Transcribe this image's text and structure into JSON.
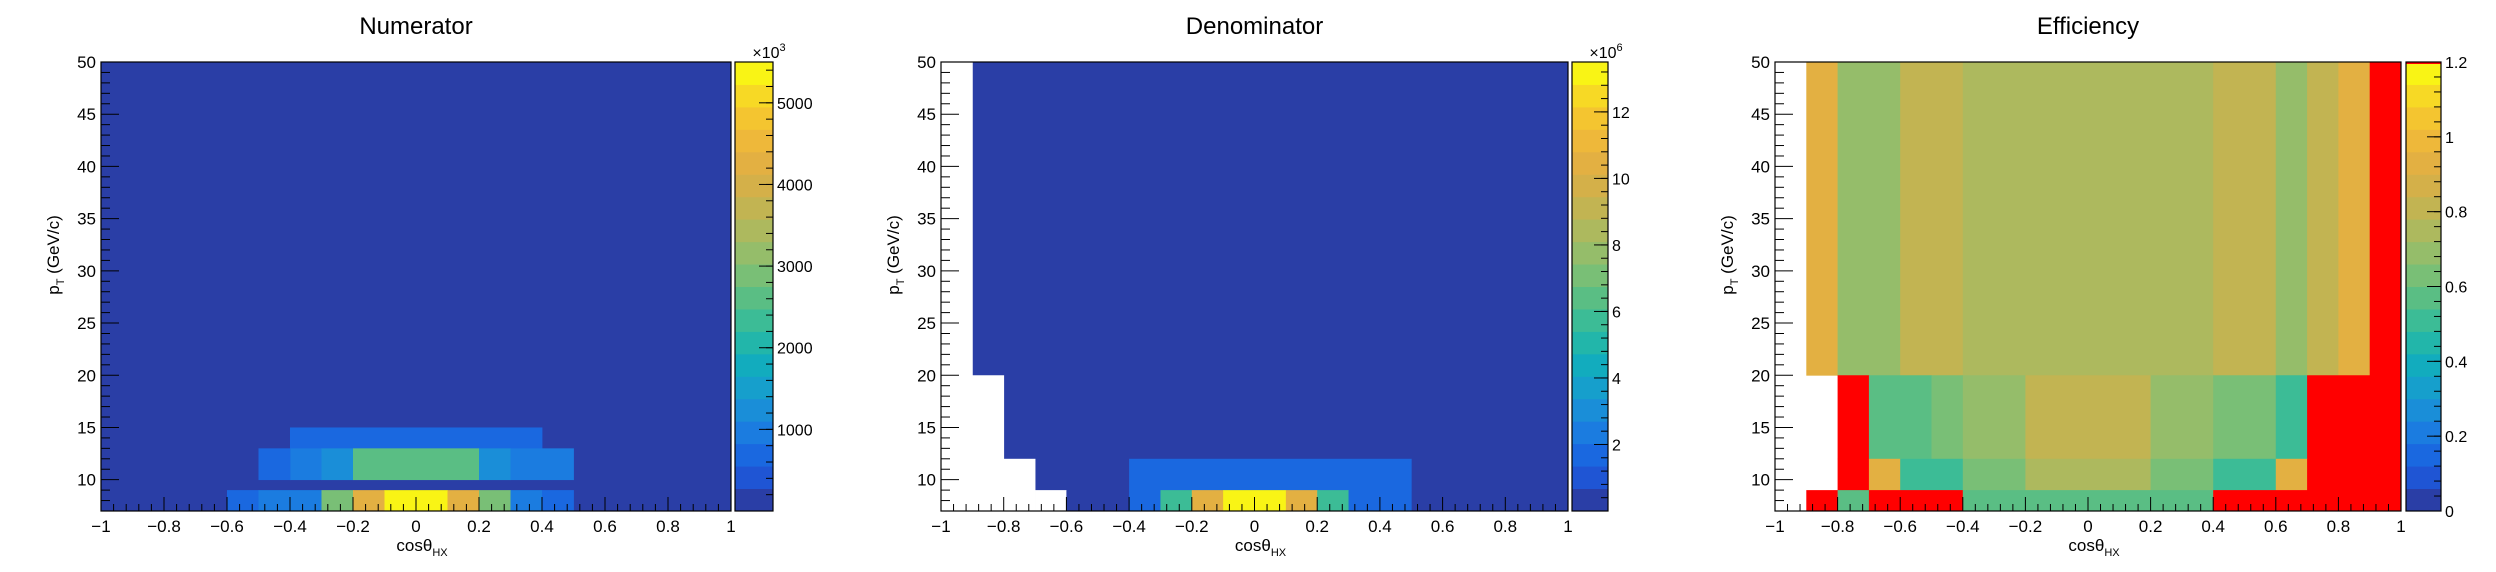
{
  "chart_data": [
    {
      "type": "heatmap",
      "title": "Numerator",
      "xlabel_main": "cosθ",
      "xlabel_sub": "HX",
      "ylabel_main": "p",
      "ylabel_sub": "T",
      "ylabel_rest": " (GeV/c)",
      "xlim": [
        -1,
        1
      ],
      "ylim": [
        7,
        50
      ],
      "x_ticks": [
        -1,
        -0.8,
        -0.6,
        -0.4,
        -0.2,
        0,
        0.2,
        0.4,
        0.6,
        0.8,
        1
      ],
      "x_tick_labels": [
        "−1",
        "−0.8",
        "−0.6",
        "−0.4",
        "−0.2",
        "0",
        "0.2",
        "0.4",
        "0.6",
        "0.8",
        "1"
      ],
      "y_ticks": [
        10,
        15,
        20,
        25,
        30,
        35,
        40,
        45,
        50
      ],
      "y_tick_labels": [
        "10",
        "15",
        "20",
        "25",
        "30",
        "35",
        "40",
        "45",
        "50"
      ],
      "colorbar": {
        "range": [
          0,
          5500
        ],
        "ticks": [
          1000,
          2000,
          3000,
          4000,
          5000
        ],
        "tick_labels": [
          "1000",
          "2000",
          "3000",
          "4000",
          "5000"
        ],
        "multiplier": "×10",
        "multiplier_exp": "3"
      },
      "cells": [
        {
          "x0": -1,
          "x1": 1,
          "y0": 7,
          "y1": 50,
          "v": 150
        },
        {
          "x0": -0.4,
          "x1": 0.4,
          "y0": 13,
          "y1": 15,
          "v": 700
        },
        {
          "x0": -0.4,
          "x1": -0.3,
          "y0": 10,
          "y1": 13,
          "v": 900
        },
        {
          "x0": -0.3,
          "x1": -0.2,
          "y0": 10,
          "y1": 13,
          "v": 1300
        },
        {
          "x0": -0.2,
          "x1": 0.2,
          "y0": 10,
          "y1": 13,
          "v": 2500
        },
        {
          "x0": 0.2,
          "x1": 0.3,
          "y0": 10,
          "y1": 13,
          "v": 1300
        },
        {
          "x0": 0.3,
          "x1": 0.5,
          "y0": 10,
          "y1": 13,
          "v": 900
        },
        {
          "x0": -0.5,
          "x1": -0.4,
          "y0": 10,
          "y1": 13,
          "v": 700
        },
        {
          "x0": -0.6,
          "x1": -0.5,
          "y0": 7,
          "y1": 9,
          "v": 700
        },
        {
          "x0": -0.5,
          "x1": -0.3,
          "y0": 7,
          "y1": 9,
          "v": 900
        },
        {
          "x0": -0.3,
          "x1": -0.2,
          "y0": 7,
          "y1": 9,
          "v": 2800
        },
        {
          "x0": -0.2,
          "x1": -0.1,
          "y0": 7,
          "y1": 9,
          "v": 4200
        },
        {
          "x0": -0.1,
          "x1": 0.1,
          "y0": 7,
          "y1": 9,
          "v": 5400
        },
        {
          "x0": 0.1,
          "x1": 0.2,
          "y0": 7,
          "y1": 9,
          "v": 4200
        },
        {
          "x0": 0.2,
          "x1": 0.3,
          "y0": 7,
          "y1": 9,
          "v": 2800
        },
        {
          "x0": 0.3,
          "x1": 0.4,
          "y0": 7,
          "y1": 9,
          "v": 1000
        },
        {
          "x0": 0.4,
          "x1": 0.5,
          "y0": 7,
          "y1": 9,
          "v": 800
        }
      ]
    },
    {
      "type": "heatmap",
      "title": "Denominator",
      "xlabel_main": "cosθ",
      "xlabel_sub": "HX",
      "ylabel_main": "p",
      "ylabel_sub": "T",
      "ylabel_rest": " (GeV/c)",
      "xlim": [
        -1,
        1
      ],
      "ylim": [
        7,
        50
      ],
      "x_ticks": [
        -1,
        -0.8,
        -0.6,
        -0.4,
        -0.2,
        0,
        0.2,
        0.4,
        0.6,
        0.8,
        1
      ],
      "x_tick_labels": [
        "−1",
        "−0.8",
        "−0.6",
        "−0.4",
        "−0.2",
        "0",
        "0.2",
        "0.4",
        "0.6",
        "0.8",
        "1"
      ],
      "y_ticks": [
        10,
        15,
        20,
        25,
        30,
        35,
        40,
        45,
        50
      ],
      "y_tick_labels": [
        "10",
        "15",
        "20",
        "25",
        "30",
        "35",
        "40",
        "45",
        "50"
      ],
      "colorbar": {
        "range": [
          0,
          13.5
        ],
        "ticks": [
          2,
          4,
          6,
          8,
          10,
          12
        ],
        "tick_labels": [
          "2",
          "4",
          "6",
          "8",
          "10",
          "12"
        ],
        "multiplier": "×10",
        "multiplier_exp": "6"
      },
      "cells": [
        {
          "x0": -1,
          "x1": 1,
          "y0": 7,
          "y1": 50,
          "v": 0.3
        },
        {
          "x0": -1,
          "x1": -0.9,
          "y0": 7,
          "y1": 50,
          "v": null
        },
        {
          "x0": -0.9,
          "x1": -0.8,
          "y0": 7,
          "y1": 20,
          "v": null
        },
        {
          "x0": -0.8,
          "x1": -0.7,
          "y0": 7,
          "y1": 12,
          "v": null
        },
        {
          "x0": -0.7,
          "x1": -0.6,
          "y0": 7,
          "y1": 9,
          "v": null
        },
        {
          "x0": -0.6,
          "x1": -0.4,
          "y0": 7,
          "y1": 9,
          "v": 0.6
        },
        {
          "x0": -0.4,
          "x1": 0.5,
          "y0": 9,
          "y1": 12,
          "v": 1.5
        },
        {
          "x0": -0.4,
          "x1": -0.3,
          "y0": 7,
          "y1": 9,
          "v": 1.8
        },
        {
          "x0": -0.3,
          "x1": -0.2,
          "y0": 7,
          "y1": 9,
          "v": 5.5
        },
        {
          "x0": -0.2,
          "x1": -0.1,
          "y0": 7,
          "y1": 9,
          "v": 10.5
        },
        {
          "x0": -0.1,
          "x1": 0.1,
          "y0": 7,
          "y1": 9,
          "v": 13.2
        },
        {
          "x0": 0.1,
          "x1": 0.2,
          "y0": 7,
          "y1": 9,
          "v": 10.5
        },
        {
          "x0": 0.2,
          "x1": 0.3,
          "y0": 7,
          "y1": 9,
          "v": 5.5
        },
        {
          "x0": 0.3,
          "x1": 0.4,
          "y0": 7,
          "y1": 9,
          "v": 2.0
        },
        {
          "x0": 0.4,
          "x1": 0.5,
          "y0": 7,
          "y1": 9,
          "v": 1.5
        }
      ]
    },
    {
      "type": "heatmap",
      "title": "Efficiency",
      "xlabel_main": "cosθ",
      "xlabel_sub": "HX",
      "ylabel_main": "p",
      "ylabel_sub": "T",
      "ylabel_rest": " (GeV/c)",
      "xlim": [
        -1,
        1
      ],
      "ylim": [
        7,
        50
      ],
      "x_ticks": [
        -1,
        -0.8,
        -0.6,
        -0.4,
        -0.2,
        0,
        0.2,
        0.4,
        0.6,
        0.8,
        1
      ],
      "x_tick_labels": [
        "−1",
        "−0.8",
        "−0.6",
        "−0.4",
        "−0.2",
        "0",
        "0.2",
        "0.4",
        "0.6",
        "0.8",
        "1"
      ],
      "y_ticks": [
        10,
        15,
        20,
        25,
        30,
        35,
        40,
        45,
        50
      ],
      "y_tick_labels": [
        "10",
        "15",
        "20",
        "25",
        "30",
        "35",
        "40",
        "45",
        "50"
      ],
      "colorbar": {
        "range": [
          0,
          1.2
        ],
        "ticks": [
          0,
          0.2,
          0.4,
          0.6,
          0.8,
          1,
          1.2
        ],
        "tick_labels": [
          "0",
          "0.2",
          "0.4",
          "0.6",
          "0.8",
          "1",
          "1.2"
        ],
        "multiplier": "",
        "multiplier_exp": ""
      },
      "cells": [
        {
          "x0": -1,
          "x1": 1,
          "y0": 7,
          "y1": 50,
          "v": null
        },
        {
          "x0": -0.9,
          "x1": -0.8,
          "y0": 20,
          "y1": 50,
          "v": 0.95
        },
        {
          "x0": -0.8,
          "x1": -0.6,
          "y0": 20,
          "y1": 50,
          "v": 0.68
        },
        {
          "x0": -0.6,
          "x1": -0.4,
          "y0": 20,
          "y1": 50,
          "v": 0.8
        },
        {
          "x0": -0.4,
          "x1": 0.4,
          "y0": 20,
          "y1": 50,
          "v": 0.74
        },
        {
          "x0": 0.4,
          "x1": 0.6,
          "y0": 20,
          "y1": 50,
          "v": 0.8
        },
        {
          "x0": 0.6,
          "x1": 0.7,
          "y0": 20,
          "y1": 50,
          "v": 0.68
        },
        {
          "x0": 0.7,
          "x1": 0.8,
          "y0": 20,
          "y1": 50,
          "v": 0.8
        },
        {
          "x0": 0.8,
          "x1": 0.9,
          "y0": 20,
          "y1": 50,
          "v": 0.95
        },
        {
          "x0": 0.9,
          "x1": 1.0,
          "y0": 20,
          "y1": 50,
          "v": 1.2
        },
        {
          "x0": -0.8,
          "x1": -0.7,
          "y0": 12,
          "y1": 20,
          "v": 1.2
        },
        {
          "x0": -0.7,
          "x1": -0.5,
          "y0": 12,
          "y1": 20,
          "v": 0.55
        },
        {
          "x0": -0.5,
          "x1": -0.4,
          "y0": 12,
          "y1": 20,
          "v": 0.62
        },
        {
          "x0": -0.4,
          "x1": -0.2,
          "y0": 12,
          "y1": 20,
          "v": 0.66
        },
        {
          "x0": -0.2,
          "x1": 0.2,
          "y0": 12,
          "y1": 20,
          "v": 0.82
        },
        {
          "x0": 0.2,
          "x1": 0.4,
          "y0": 12,
          "y1": 20,
          "v": 0.66
        },
        {
          "x0": 0.4,
          "x1": 0.6,
          "y0": 12,
          "y1": 20,
          "v": 0.6
        },
        {
          "x0": 0.6,
          "x1": 0.7,
          "y0": 12,
          "y1": 20,
          "v": 0.5
        },
        {
          "x0": 0.7,
          "x1": 1.0,
          "y0": 12,
          "y1": 20,
          "v": 1.2
        },
        {
          "x0": -0.8,
          "x1": -0.7,
          "y0": 9,
          "y1": 12,
          "v": 1.2
        },
        {
          "x0": -0.7,
          "x1": -0.6,
          "y0": 9,
          "y1": 12,
          "v": 0.9
        },
        {
          "x0": -0.6,
          "x1": -0.4,
          "y0": 9,
          "y1": 12,
          "v": 0.5
        },
        {
          "x0": -0.4,
          "x1": -0.2,
          "y0": 9,
          "y1": 12,
          "v": 0.6
        },
        {
          "x0": -0.2,
          "x1": 0.2,
          "y0": 9,
          "y1": 12,
          "v": 0.72
        },
        {
          "x0": 0.2,
          "x1": 0.4,
          "y0": 9,
          "y1": 12,
          "v": 0.6
        },
        {
          "x0": 0.4,
          "x1": 0.6,
          "y0": 9,
          "y1": 12,
          "v": 0.5
        },
        {
          "x0": 0.6,
          "x1": 0.7,
          "y0": 9,
          "y1": 12,
          "v": 0.9
        },
        {
          "x0": 0.7,
          "x1": 1.0,
          "y0": 9,
          "y1": 12,
          "v": 1.2
        },
        {
          "x0": -0.9,
          "x1": -0.8,
          "y0": 7,
          "y1": 9,
          "v": 1.2
        },
        {
          "x0": -0.8,
          "x1": -0.7,
          "y0": 7,
          "y1": 9,
          "v": 0.55
        },
        {
          "x0": -0.7,
          "x1": -0.4,
          "y0": 7,
          "y1": 9,
          "v": 1.2
        },
        {
          "x0": -0.4,
          "x1": 0.4,
          "y0": 7,
          "y1": 9,
          "v": 0.55
        },
        {
          "x0": 0.4,
          "x1": 1.0,
          "y0": 7,
          "y1": 9,
          "v": 1.2
        }
      ]
    }
  ]
}
